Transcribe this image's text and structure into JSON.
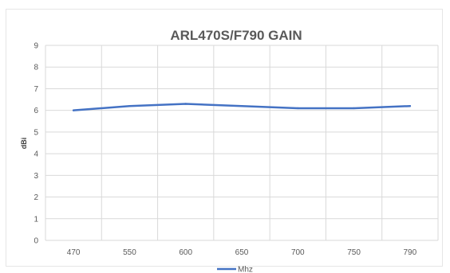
{
  "chart_data": {
    "type": "line",
    "title": "ARL470S/F790 GAIN",
    "xlabel": "",
    "ylabel": "dBi",
    "categories": [
      "470",
      "550",
      "600",
      "650",
      "700",
      "750",
      "790"
    ],
    "series": [
      {
        "name": "Mhz",
        "values": [
          6.0,
          6.2,
          6.3,
          6.2,
          6.1,
          6.1,
          6.2
        ]
      }
    ],
    "ylim": [
      0,
      9
    ],
    "yticks": [
      0,
      1,
      2,
      3,
      4,
      5,
      6,
      7,
      8,
      9
    ],
    "grid": true,
    "legend_position": "bottom",
    "colors": {
      "series": "#4472c4",
      "grid": "#d9d9d9",
      "text": "#595959"
    }
  }
}
